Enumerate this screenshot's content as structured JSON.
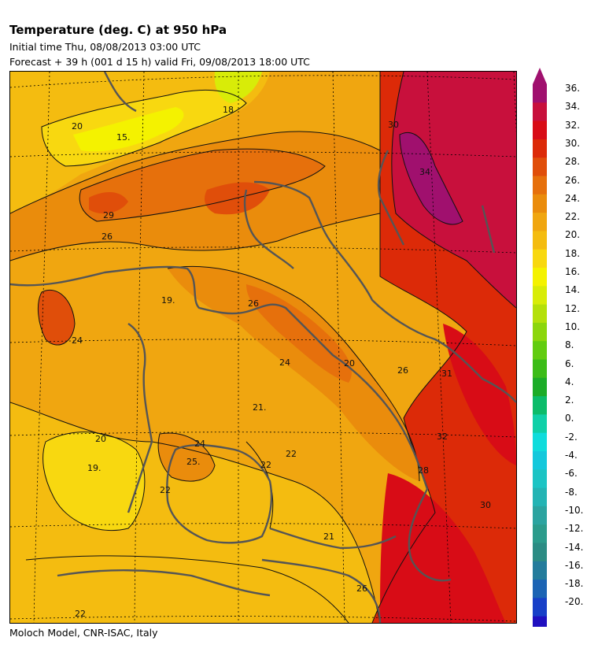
{
  "header": {
    "title": "Temperature (deg. C) at 950 hPa",
    "initial_time": "Initial time  Thu, 08/08/2013  03:00 UTC",
    "forecast": "Forecast  +  39 h  (001 d 15 h)  valid Fri, 09/08/2013 18:00 UTC"
  },
  "footer": {
    "credit": "Moloch Model, CNR-ISAC, Italy"
  },
  "colorbar": {
    "labels": [
      "36.",
      "34.",
      "32.",
      "30.",
      "28.",
      "26.",
      "24.",
      "22.",
      "20.",
      "18.",
      "16.",
      "14.",
      "12.",
      "10.",
      "8.",
      "6.",
      "4.",
      "2.",
      "0.",
      "-2.",
      "-4.",
      "-6.",
      "-8.",
      "-10.",
      "-12.",
      "-14.",
      "-16.",
      "-18.",
      "-20."
    ],
    "colors": [
      "#a0106e",
      "#c8103c",
      "#d80c16",
      "#dc2a08",
      "#e04e0a",
      "#e6700c",
      "#ea8c0c",
      "#f0a610",
      "#f4bc10",
      "#f8d810",
      "#f4f200",
      "#d8ec08",
      "#b4e00a",
      "#8cd60c",
      "#62cc10",
      "#3cbc18",
      "#1cac28",
      "#0cbc6a",
      "#10d0a8",
      "#10dcdc",
      "#14c8dc",
      "#1cc4c4",
      "#24b4b4",
      "#2ca4a0",
      "#2c9c8c",
      "#2c8c84",
      "#247c9c",
      "#1c64b4",
      "#1840c8",
      "#2010c0"
    ]
  },
  "map": {
    "contour_labels": [
      "20",
      "18",
      "15.",
      "30",
      "34",
      "29",
      "26",
      "19.",
      "26",
      "24",
      "24",
      "20",
      "26",
      "31",
      "21.",
      "25.",
      "24",
      "22",
      "22",
      "19.",
      "22",
      "20",
      "32",
      "28",
      "30",
      "21",
      "22",
      "26"
    ]
  }
}
